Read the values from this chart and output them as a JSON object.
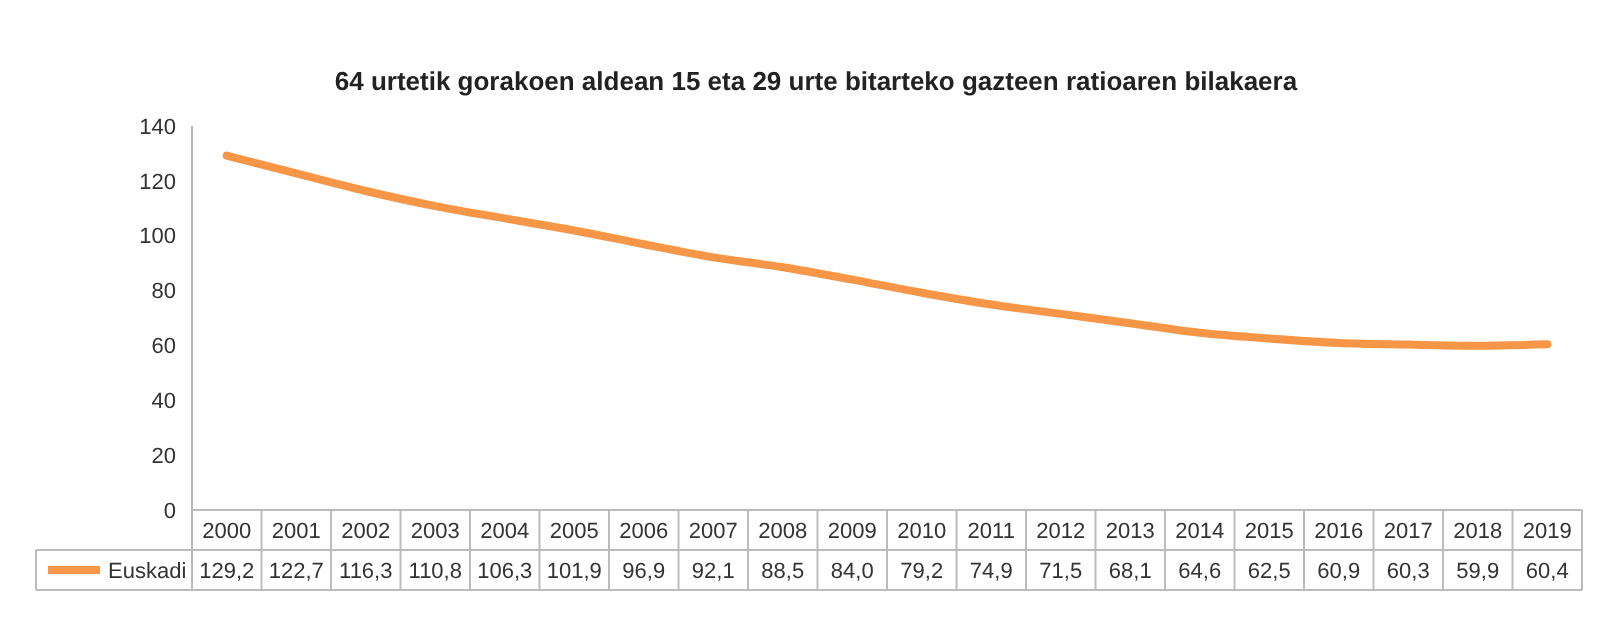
{
  "chart_data": {
    "type": "line",
    "title": "64 urtetik gorakoen aldean 15 eta 29 urte bitarteko gazteen ratioaren bilakaera",
    "categories": [
      "2000",
      "2001",
      "2002",
      "2003",
      "2004",
      "2005",
      "2006",
      "2007",
      "2008",
      "2009",
      "2010",
      "2011",
      "2012",
      "2013",
      "2014",
      "2015",
      "2016",
      "2017",
      "2018",
      "2019"
    ],
    "series": [
      {
        "name": "Euskadi",
        "color": "#f79646",
        "values": [
          129.2,
          122.7,
          116.3,
          110.8,
          106.3,
          101.9,
          96.9,
          92.1,
          88.5,
          84.0,
          79.2,
          74.9,
          71.5,
          68.1,
          64.6,
          62.5,
          60.9,
          60.3,
          59.9,
          60.4
        ],
        "value_labels": [
          "129,2",
          "122,7",
          "116,3",
          "110,8",
          "106,3",
          "101,9",
          "96,9",
          "92,1",
          "88,5",
          "84,0",
          "79,2",
          "74,9",
          "71,5",
          "68,1",
          "64,6",
          "62,5",
          "60,9",
          "60,3",
          "59,9",
          "60,4"
        ]
      }
    ],
    "ylim": [
      0,
      140
    ],
    "yticks": [
      0,
      20,
      40,
      60,
      80,
      100,
      120,
      140
    ],
    "grid": false,
    "legend": "bottom",
    "marker": "none",
    "line_style": "solid"
  }
}
